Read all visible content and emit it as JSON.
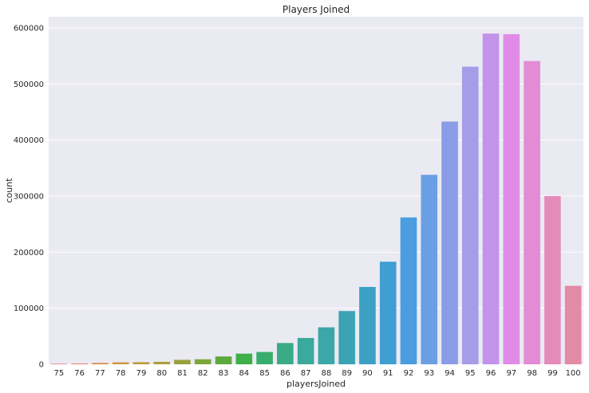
{
  "chart_data": {
    "type": "bar",
    "title": "Players Joined",
    "xlabel": "playersJoined",
    "ylabel": "count",
    "categories": [
      "75",
      "76",
      "77",
      "78",
      "79",
      "80",
      "81",
      "82",
      "83",
      "84",
      "85",
      "86",
      "87",
      "88",
      "89",
      "90",
      "91",
      "92",
      "93",
      "94",
      "95",
      "96",
      "97",
      "98",
      "99",
      "100"
    ],
    "values": [
      1000,
      1500,
      2500,
      3500,
      3800,
      4500,
      8000,
      9000,
      14000,
      19000,
      22000,
      38000,
      47000,
      66000,
      95000,
      138000,
      183000,
      262000,
      338000,
      433000,
      531000,
      590000,
      589000,
      541000,
      300000,
      140000
    ],
    "colors": [
      "#e8777d",
      "#e5836f",
      "#d98d52",
      "#cf9441",
      "#bd9b3f",
      "#ab9e3d",
      "#98a13c",
      "#7da63c",
      "#5ea93d",
      "#3eaf49",
      "#38ad6c",
      "#3aaa87",
      "#3ba99b",
      "#3ca6a8",
      "#3ba3b4",
      "#3ca0c4",
      "#3f9ed2",
      "#4a9de0",
      "#6a9fe4",
      "#8a9ce7",
      "#a69ce8",
      "#c392ea",
      "#e08ce6",
      "#e38bd4",
      "#e58bbc",
      "#e38aa6"
    ],
    "yticks": [
      0,
      100000,
      200000,
      300000,
      400000,
      500000,
      600000
    ],
    "ylim": [
      0,
      620000
    ],
    "grid": true,
    "background": "#eaeaf2",
    "grid_color": "#ffffff"
  }
}
